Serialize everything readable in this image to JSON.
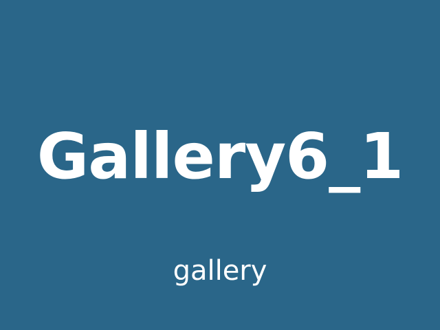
{
  "image": {
    "title": "Gallery6_1",
    "caption": "gallery",
    "background_color": "#2a6689",
    "text_color": "#ffffff"
  }
}
